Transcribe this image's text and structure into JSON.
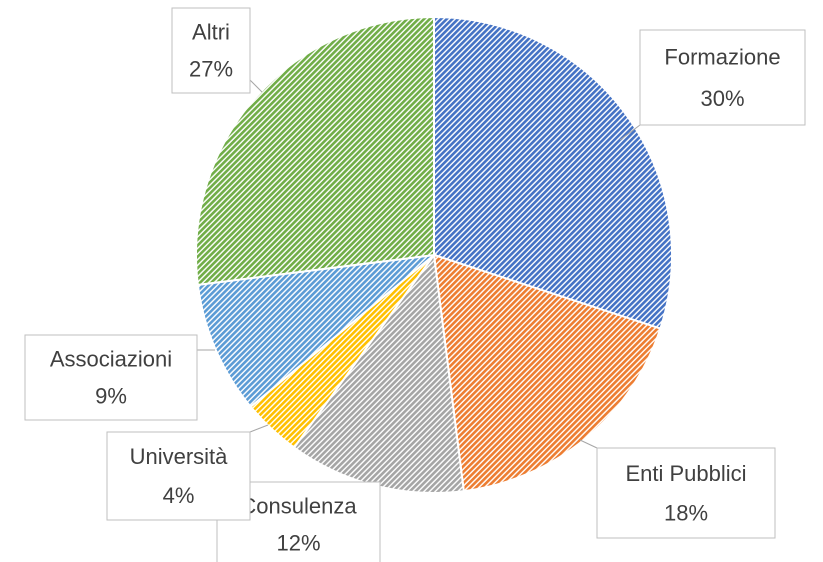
{
  "chart_data": {
    "type": "pie",
    "categories": [
      "Formazione",
      "Enti Pubblici",
      "Consulenza",
      "Università",
      "Associazioni",
      "Altri"
    ],
    "values": [
      30,
      18,
      12,
      4,
      9,
      27
    ],
    "value_labels": [
      "30%",
      "18%",
      "12%",
      "4%",
      "9%",
      "27%"
    ],
    "colors": [
      "#4472c4",
      "#ed7d31",
      "#a5a5a5",
      "#ffc000",
      "#5b9bd5",
      "#70ad47"
    ]
  }
}
